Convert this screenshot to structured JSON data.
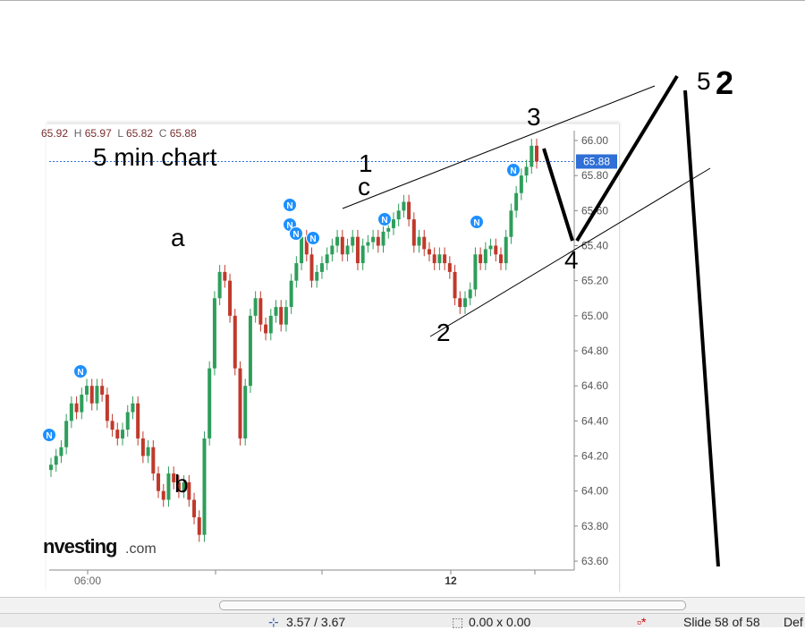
{
  "chart_header": {
    "o_value": "65.92",
    "h_label": "H",
    "h_value": "65.97",
    "l_label": "L",
    "l_value": "65.82",
    "c_label": "C",
    "c_value": "65.88"
  },
  "annotations": {
    "title": "5 min chart",
    "a": "a",
    "b": "b",
    "w1": "1",
    "c": "c",
    "w3": "3",
    "w2": "2",
    "w4": "4",
    "w5": "5",
    "big2": "2"
  },
  "watermark": "investing.com",
  "chart_data": {
    "type": "candlestick",
    "ylim": [
      63.5,
      66.1
    ],
    "y_ticks": [
      "66.00",
      "65.80",
      "65.60",
      "65.40",
      "65.20",
      "65.00",
      "64.80",
      "64.60",
      "64.40",
      "64.20",
      "64.00",
      "63.80",
      "63.60"
    ],
    "x_ticks": [
      "06:00",
      "",
      "",
      "12",
      ""
    ],
    "current_price": "65.88",
    "current_price_color": "#2f6fd6",
    "up_color": "#2e9e5b",
    "down_color": "#c0392b",
    "news_marker_color": "#1e90ff",
    "news_marker_label": "N",
    "closes": [
      64.15,
      64.2,
      64.25,
      64.4,
      64.5,
      64.45,
      64.55,
      64.6,
      64.5,
      64.6,
      64.55,
      64.4,
      64.35,
      64.3,
      64.35,
      64.45,
      64.5,
      64.3,
      64.2,
      64.25,
      64.1,
      64.0,
      63.95,
      64.1,
      64.05,
      64.0,
      64.05,
      63.95,
      63.85,
      63.75,
      64.3,
      64.7,
      65.1,
      65.25,
      65.2,
      65.0,
      64.7,
      64.3,
      64.6,
      65.0,
      65.1,
      64.95,
      64.9,
      65.0,
      65.05,
      64.95,
      65.05,
      65.2,
      65.3,
      65.45,
      65.35,
      65.2,
      65.25,
      65.3,
      65.35,
      65.4,
      65.45,
      65.35,
      65.4,
      65.45,
      65.3,
      65.4,
      65.42,
      65.45,
      65.4,
      65.48,
      65.5,
      65.55,
      65.6,
      65.65,
      65.55,
      65.4,
      65.45,
      65.38,
      65.35,
      65.3,
      65.35,
      65.3,
      65.25,
      65.1,
      65.05,
      65.1,
      65.15,
      65.35,
      65.3,
      65.38,
      65.4,
      65.35,
      65.3,
      65.45,
      65.6,
      65.7,
      65.8,
      65.85,
      65.97,
      65.88
    ]
  },
  "status_bar": {
    "position": "3.57 / 3.67",
    "size": "0.00 x 0.00",
    "slide": "Slide 58 of 58",
    "layout": "Def"
  }
}
